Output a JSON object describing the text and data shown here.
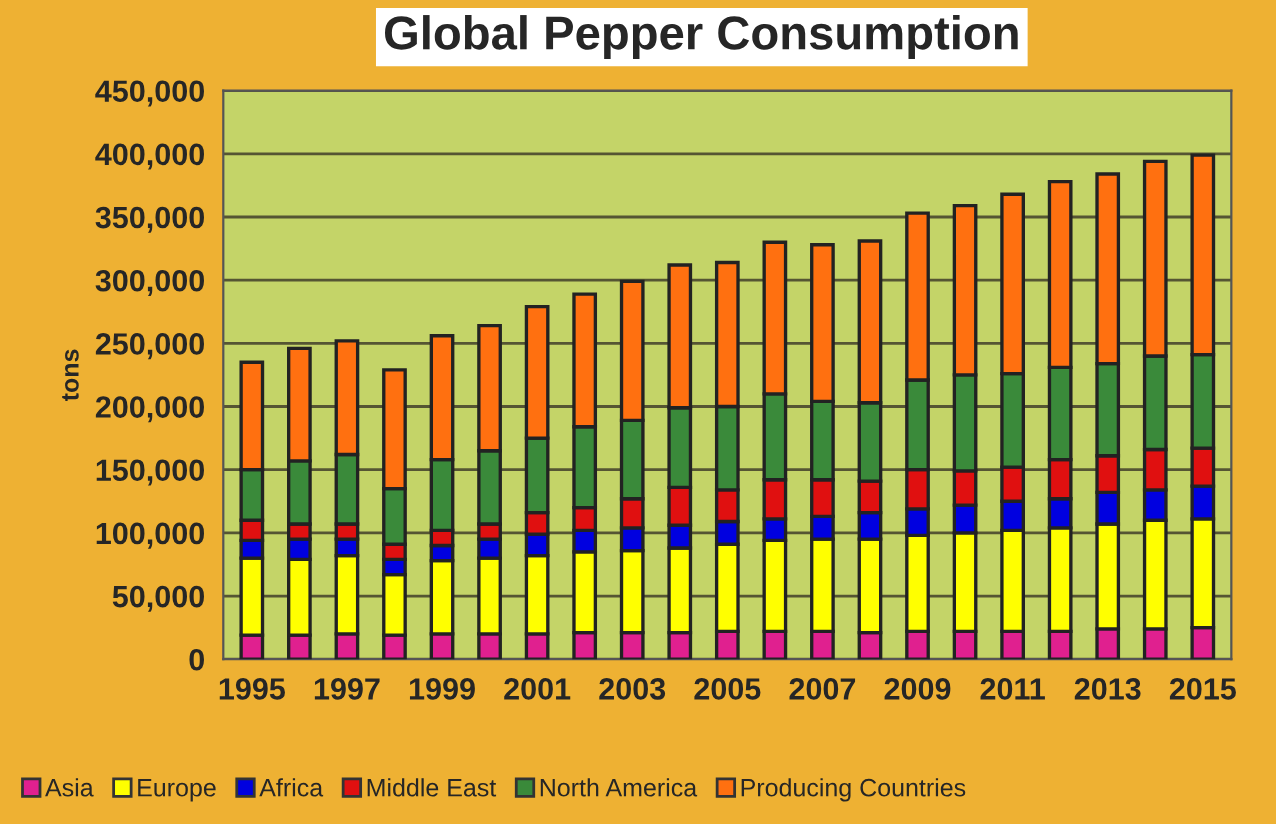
{
  "chart_data": {
    "type": "bar",
    "title": "Global Pepper Consumption",
    "ylabel": "tons",
    "stacked": true,
    "categories": [
      "1995",
      null,
      "1997",
      null,
      "1999",
      null,
      "2001",
      null,
      "2003",
      null,
      "2005",
      null,
      "2007",
      null,
      "2009",
      null,
      "2011",
      null,
      "2013",
      null,
      "2015"
    ],
    "series": [
      {
        "name": "Asia",
        "color": "#e0208f",
        "values": [
          19000,
          19000,
          20000,
          19000,
          20000,
          20000,
          20000,
          21000,
          21000,
          21000,
          22000,
          22000,
          22000,
          21000,
          22000,
          22000,
          22000,
          22000,
          24000,
          24000,
          25000
        ]
      },
      {
        "name": "Europe",
        "color": "#ffff00",
        "values": [
          61000,
          60000,
          62000,
          48000,
          58000,
          60000,
          62000,
          64000,
          65000,
          67000,
          69000,
          72000,
          73000,
          74000,
          76000,
          78000,
          80000,
          82000,
          83000,
          86000,
          86000
        ]
      },
      {
        "name": "Africa",
        "color": "#0000e0",
        "values": [
          14000,
          16000,
          13000,
          12000,
          12000,
          15000,
          17000,
          17000,
          18000,
          18000,
          18000,
          17000,
          18000,
          21000,
          21000,
          22000,
          23000,
          23000,
          25000,
          24000,
          26000
        ]
      },
      {
        "name": "Middle East",
        "color": "#e01010",
        "values": [
          16000,
          12000,
          12000,
          12000,
          12000,
          12000,
          17000,
          18000,
          23000,
          30000,
          25000,
          31000,
          29000,
          25000,
          31000,
          27000,
          27000,
          31000,
          29000,
          32000,
          30000
        ]
      },
      {
        "name": "North America",
        "color": "#3a8a3a",
        "values": [
          40000,
          50000,
          55000,
          44000,
          56000,
          58000,
          59000,
          64000,
          62000,
          63000,
          66000,
          68000,
          62000,
          62000,
          71000,
          76000,
          74000,
          73000,
          73000,
          74000,
          74000
        ]
      },
      {
        "name": "Producing Countries",
        "color": "#ff7010",
        "values": [
          85000,
          89000,
          90000,
          94000,
          98000,
          99000,
          104000,
          105000,
          110000,
          113000,
          114000,
          120000,
          124000,
          128000,
          132000,
          134000,
          142000,
          147000,
          150000,
          154000,
          158000
        ]
      }
    ],
    "ylim": [
      0,
      450000
    ],
    "yticks": [
      0,
      {
        "value": 50000,
        "label": "50,000"
      },
      {
        "value": 100000,
        "label": "100,000"
      },
      {
        "value": 150000,
        "label": "150,000"
      },
      {
        "value": 200000,
        "label": "200,000"
      },
      {
        "value": 250000,
        "label": "250,000"
      },
      {
        "value": 300000,
        "label": "300,000"
      },
      {
        "value": 350000,
        "label": "350,000"
      },
      {
        "value": 400000,
        "label": "400,000"
      },
      {
        "value": 450000,
        "label": "450,000"
      }
    ],
    "grid": "y",
    "legend": "bottom"
  }
}
